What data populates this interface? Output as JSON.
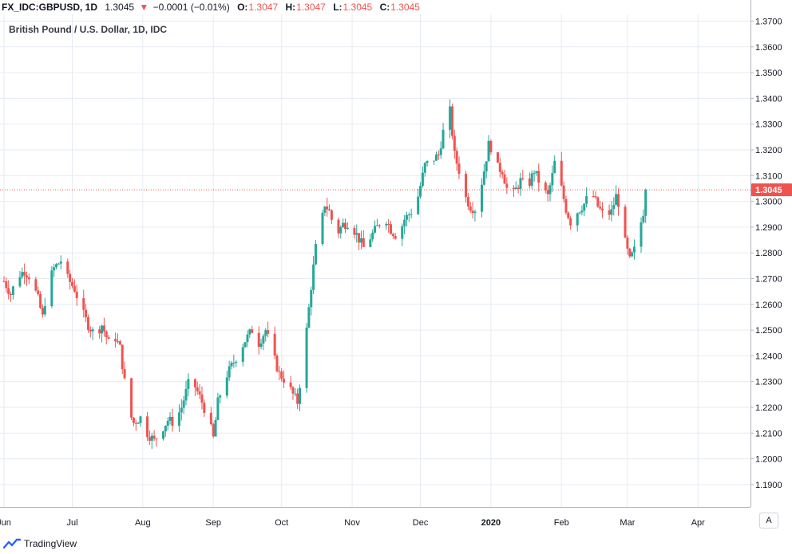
{
  "header": {
    "symbol": "FX_IDC:GBPUSD, 1D",
    "last": "1.3045",
    "change": "−0.0001 (−0.01%)",
    "o_label": "O:",
    "o_value": "1.3047",
    "h_label": "H:",
    "h_value": "1.3047",
    "l_label": "L:",
    "l_value": "1.3045",
    "c_label": "C:",
    "c_value": "1.3045"
  },
  "subtitle": "British Pound / U.S. Dollar, 1D, IDC",
  "price_tag": "1.3045",
  "scale_button": "A",
  "brand": "TradingView",
  "colors": {
    "up": "#26a69a",
    "down": "#ef5350",
    "grid": "#e6ebf2",
    "axis": "#787b86",
    "price_line": "#ef5350"
  },
  "chart_data": {
    "type": "candlestick",
    "title": "British Pound / U.S. Dollar, 1D, IDC",
    "ylim": [
      1.182,
      1.371
    ],
    "yticks": [
      1.19,
      1.2,
      1.21,
      1.22,
      1.23,
      1.24,
      1.25,
      1.26,
      1.27,
      1.28,
      1.29,
      1.3,
      1.31,
      1.32,
      1.33,
      1.34,
      1.35,
      1.36,
      1.37
    ],
    "ytick_labels": [
      "1.1900",
      "1.2000",
      "1.2100",
      "1.2200",
      "1.2300",
      "1.2400",
      "1.2500",
      "1.2600",
      "1.2700",
      "1.2800",
      "1.2900",
      "1.3000",
      "1.3100",
      "1.3200",
      "1.3300",
      "1.3400",
      "1.3500",
      "1.3600",
      "1.3700"
    ],
    "xticks": [
      {
        "label": "Jun",
        "day": 0
      },
      {
        "label": "Jul",
        "day": 30
      },
      {
        "label": "Aug",
        "day": 61
      },
      {
        "label": "Sep",
        "day": 92
      },
      {
        "label": "Oct",
        "day": 122
      },
      {
        "label": "Nov",
        "day": 153
      },
      {
        "label": "Dec",
        "day": 183
      },
      {
        "label": "2020",
        "day": 214,
        "bold": true
      },
      {
        "label": "Feb",
        "day": 245
      },
      {
        "label": "Mar",
        "day": 274
      },
      {
        "label": "Apr",
        "day": 305
      }
    ],
    "last_price": 1.3045,
    "path": [
      [
        0,
        1.269
      ],
      [
        3,
        1.264
      ],
      [
        6,
        1.271
      ],
      [
        9,
        1.273
      ],
      [
        12,
        1.27
      ],
      [
        15,
        1.262
      ],
      [
        17,
        1.255
      ],
      [
        19,
        1.267
      ],
      [
        22,
        1.274
      ],
      [
        25,
        1.277
      ],
      [
        28,
        1.27
      ],
      [
        31,
        1.266
      ],
      [
        34,
        1.258
      ],
      [
        37,
        1.252
      ],
      [
        40,
        1.248
      ],
      [
        43,
        1.252
      ],
      [
        46,
        1.245
      ],
      [
        49,
        1.247
      ],
      [
        51,
        1.243
      ],
      [
        53,
        1.23
      ],
      [
        55,
        1.218
      ],
      [
        57,
        1.214
      ],
      [
        60,
        1.216
      ],
      [
        63,
        1.21
      ],
      [
        66,
        1.207
      ],
      [
        69,
        1.211
      ],
      [
        72,
        1.215
      ],
      [
        75,
        1.214
      ],
      [
        78,
        1.22
      ],
      [
        81,
        1.229
      ],
      [
        84,
        1.228
      ],
      [
        87,
        1.222
      ],
      [
        90,
        1.215
      ],
      [
        92,
        1.208
      ],
      [
        94,
        1.222
      ],
      [
        97,
        1.231
      ],
      [
        100,
        1.236
      ],
      [
        103,
        1.241
      ],
      [
        106,
        1.246
      ],
      [
        109,
        1.25
      ],
      [
        112,
        1.245
      ],
      [
        115,
        1.25
      ],
      [
        118,
        1.241
      ],
      [
        121,
        1.233
      ],
      [
        124,
        1.23
      ],
      [
        127,
        1.225
      ],
      [
        129,
        1.222
      ],
      [
        131,
        1.236
      ],
      [
        133,
        1.25
      ],
      [
        135,
        1.267
      ],
      [
        137,
        1.282
      ],
      [
        139,
        1.289
      ],
      [
        141,
        1.299
      ],
      [
        143,
        1.296
      ],
      [
        146,
        1.287
      ],
      [
        149,
        1.291
      ],
      [
        152,
        1.292
      ],
      [
        155,
        1.287
      ],
      [
        158,
        1.282
      ],
      [
        161,
        1.286
      ],
      [
        164,
        1.29
      ],
      [
        167,
        1.295
      ],
      [
        170,
        1.289
      ],
      [
        173,
        1.286
      ],
      [
        176,
        1.293
      ],
      [
        179,
        1.296
      ],
      [
        182,
        1.302
      ],
      [
        185,
        1.314
      ],
      [
        188,
        1.316
      ],
      [
        191,
        1.318
      ],
      [
        193,
        1.327
      ],
      [
        194,
        1.333
      ],
      [
        196,
        1.335
      ],
      [
        198,
        1.318
      ],
      [
        200,
        1.312
      ],
      [
        202,
        1.303
      ],
      [
        205,
        1.298
      ],
      [
        207,
        1.297
      ],
      [
        209,
        1.303
      ],
      [
        211,
        1.312
      ],
      [
        213,
        1.322
      ],
      [
        215,
        1.32
      ],
      [
        217,
        1.313
      ],
      [
        219,
        1.312
      ],
      [
        221,
        1.305
      ],
      [
        224,
        1.303
      ],
      [
        227,
        1.308
      ],
      [
        230,
        1.305
      ],
      [
        233,
        1.312
      ],
      [
        236,
        1.306
      ],
      [
        239,
        1.302
      ],
      [
        241,
        1.31
      ],
      [
        243,
        1.32
      ],
      [
        245,
        1.305
      ],
      [
        247,
        1.297
      ],
      [
        249,
        1.292
      ],
      [
        252,
        1.296
      ],
      [
        255,
        1.299
      ],
      [
        258,
        1.304
      ],
      [
        261,
        1.298
      ],
      [
        264,
        1.294
      ],
      [
        267,
        1.296
      ],
      [
        269,
        1.302
      ],
      [
        271,
        1.297
      ],
      [
        273,
        1.284
      ],
      [
        275,
        1.277
      ],
      [
        277,
        1.281
      ],
      [
        279,
        1.288
      ],
      [
        281,
        1.296
      ],
      [
        282,
        1.3045
      ]
    ]
  }
}
